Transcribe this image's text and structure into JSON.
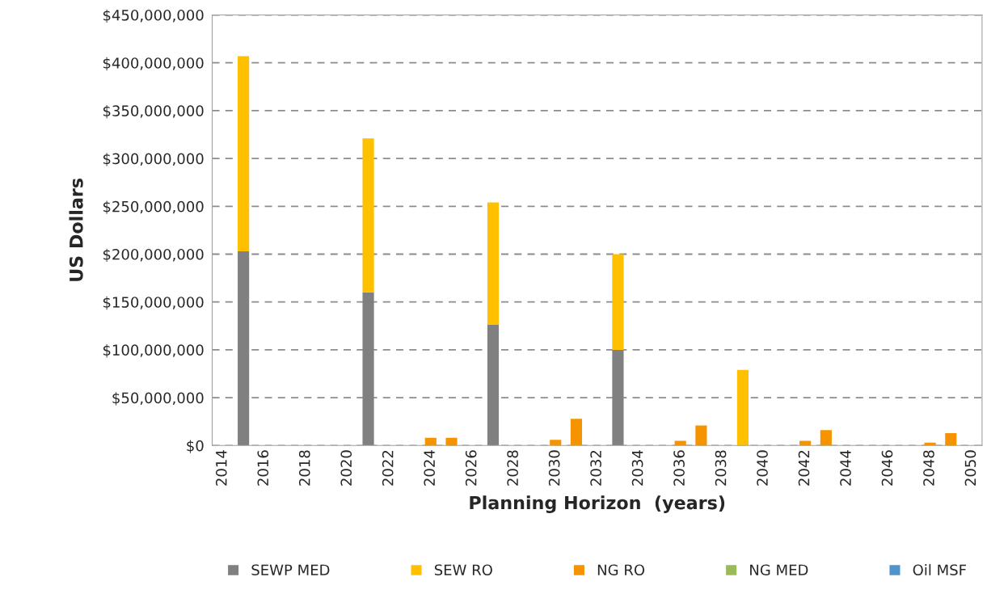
{
  "chart_data": {
    "type": "bar",
    "stacked": true,
    "xlabel": "Planning Horizon  (years)",
    "ylabel": "US Dollars",
    "categories": [
      "2014",
      null,
      "2016",
      null,
      "2018",
      null,
      "2020",
      null,
      "2022",
      null,
      "2024",
      null,
      "2026",
      null,
      "2028",
      null,
      "2030",
      null,
      "2032",
      null,
      "2034",
      null,
      "2036",
      null,
      "2038",
      null,
      "2040",
      null,
      "2042",
      null,
      "2044",
      null,
      "2046",
      null,
      "2048",
      null,
      "2050"
    ],
    "series": [
      {
        "name": "SEWP MED",
        "color": "#808080",
        "values": [
          null,
          203000000,
          null,
          null,
          null,
          null,
          null,
          160000000,
          null,
          null,
          null,
          null,
          null,
          126000000,
          null,
          null,
          null,
          null,
          null,
          100000000,
          null,
          null,
          null,
          null,
          null,
          null,
          null,
          null,
          null,
          null,
          null,
          null,
          null,
          null,
          null,
          null,
          null
        ]
      },
      {
        "name": "SEW RO",
        "color": "#ffc000",
        "values": [
          null,
          204000000,
          null,
          null,
          null,
          null,
          null,
          161000000,
          null,
          null,
          null,
          null,
          null,
          128000000,
          null,
          null,
          null,
          null,
          null,
          100000000,
          null,
          null,
          null,
          null,
          null,
          79000000,
          null,
          null,
          null,
          null,
          null,
          null,
          null,
          null,
          null,
          null,
          null
        ]
      },
      {
        "name": "NG RO",
        "color": "#f59400",
        "values": [
          null,
          null,
          null,
          null,
          null,
          null,
          null,
          null,
          null,
          null,
          8000000,
          8000000,
          null,
          null,
          null,
          null,
          6000000,
          28000000,
          null,
          null,
          null,
          null,
          5000000,
          21000000,
          null,
          null,
          null,
          null,
          5000000,
          16000000,
          null,
          null,
          null,
          null,
          3000000,
          13000000,
          null
        ]
      },
      {
        "name": "NG MED",
        "color": "#9bbb59",
        "values": [
          null,
          null,
          null,
          null,
          null,
          null,
          null,
          null,
          null,
          null,
          null,
          null,
          null,
          null,
          null,
          null,
          null,
          null,
          null,
          null,
          null,
          null,
          null,
          null,
          null,
          null,
          null,
          null,
          null,
          null,
          null,
          null,
          null,
          null,
          null,
          null,
          null
        ]
      },
      {
        "name": "Oil MSF",
        "color": "#4f94cd",
        "values": [
          null,
          null,
          null,
          null,
          null,
          null,
          null,
          null,
          null,
          null,
          null,
          null,
          null,
          null,
          null,
          null,
          null,
          null,
          null,
          null,
          null,
          null,
          null,
          null,
          null,
          null,
          null,
          null,
          null,
          null,
          null,
          null,
          null,
          null,
          null,
          null,
          null
        ]
      }
    ],
    "ylim": [
      0,
      450000000
    ],
    "yticks": [
      {
        "value": 0,
        "label": "$0"
      },
      {
        "value": 50000000,
        "label": "$50,000,000"
      },
      {
        "value": 100000000,
        "label": "$100,000,000"
      },
      {
        "value": 150000000,
        "label": "$150,000,000"
      },
      {
        "value": 200000000,
        "label": "$200,000,000"
      },
      {
        "value": 250000000,
        "label": "$250,000,000"
      },
      {
        "value": 300000000,
        "label": "$300,000,000"
      },
      {
        "value": 350000000,
        "label": "$350,000,000"
      },
      {
        "value": 400000000,
        "label": "$400,000,000"
      },
      {
        "value": 450000000,
        "label": "$450,000,000"
      }
    ],
    "grid": "y",
    "legend": "bottom"
  }
}
